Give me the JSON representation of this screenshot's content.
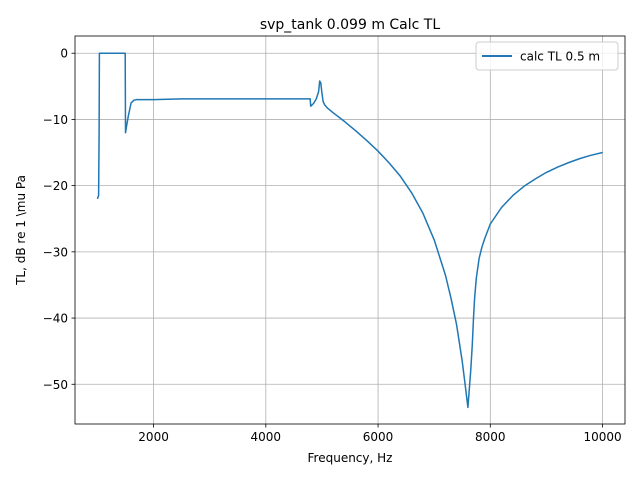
{
  "chart_data": {
    "type": "line",
    "title": "svp_tank 0.099 m Calc TL",
    "xlabel": "Frequency, Hz",
    "ylabel": "TL, dB re 1 \\mu Pa",
    "xlim": [
      600,
      10400
    ],
    "ylim": [
      -56,
      2.6
    ],
    "xticks": [
      2000,
      4000,
      6000,
      8000,
      10000
    ],
    "yticks": [
      0,
      -10,
      -20,
      -30,
      -40,
      -50
    ],
    "grid": true,
    "legend_position": "upper right",
    "series": [
      {
        "name": "calc TL 0.5 m",
        "color": "#1f77b4",
        "x": [
          1000,
          1020,
          1030,
          1035,
          1050,
          1200,
          1400,
          1480,
          1495,
          1500,
          1520,
          1550,
          1600,
          1650,
          1700,
          1800,
          2000,
          2500,
          3000,
          3500,
          4000,
          4500,
          4790,
          4800,
          4850,
          4900,
          4940,
          4960,
          4980,
          5000,
          5020,
          5050,
          5100,
          5200,
          5400,
          5600,
          5800,
          6000,
          6200,
          6400,
          6600,
          6800,
          7000,
          7200,
          7300,
          7400,
          7500,
          7550,
          7600,
          7650,
          7680,
          7700,
          7720,
          7750,
          7800,
          7850,
          7900,
          8000,
          8200,
          8400,
          8600,
          8800,
          9000,
          9200,
          9400,
          9600,
          9800,
          10000
        ],
        "y": [
          -22,
          -21.5,
          -12,
          0,
          0,
          0,
          0,
          0,
          0,
          -12,
          -11,
          -9.5,
          -7.5,
          -7.1,
          -7.0,
          -7.0,
          -7.0,
          -6.9,
          -6.9,
          -6.9,
          -6.9,
          -6.9,
          -6.9,
          -8.0,
          -7.6,
          -6.9,
          -5.8,
          -4.2,
          -4.5,
          -6.0,
          -7.3,
          -7.8,
          -8.3,
          -9.0,
          -10.3,
          -11.7,
          -13.2,
          -14.8,
          -16.6,
          -18.6,
          -21.1,
          -24.2,
          -28.2,
          -33.5,
          -37.0,
          -41.0,
          -46.5,
          -50.0,
          -53.5,
          -48.0,
          -44.0,
          -40.0,
          -37.0,
          -34.0,
          -31.0,
          -29.3,
          -28.0,
          -25.8,
          -23.3,
          -21.5,
          -20.1,
          -19.0,
          -18.0,
          -17.2,
          -16.5,
          -15.9,
          -15.4,
          -15.0
        ]
      }
    ]
  }
}
